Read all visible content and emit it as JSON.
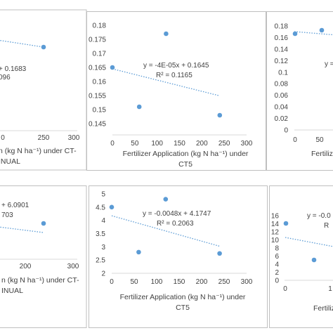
{
  "chart_data": [
    {
      "id": "top-left",
      "type": "scatter",
      "xticks": [
        "0",
        "250",
        "300"
      ],
      "xlabel_line1": "n (kg N ha⁻¹) under CT-",
      "xlabel_line2": "INUAL",
      "trendline_eq": "+ 0.1683",
      "r2": "096",
      "x": [
        240
      ],
      "y": [
        0.172
      ],
      "trend": {
        "slope": 0.0,
        "intercept": 0.1683
      }
    },
    {
      "id": "top-center",
      "type": "scatter",
      "xlim": [
        0,
        300
      ],
      "ylim": [
        0.145,
        0.18
      ],
      "xticks": [
        "0",
        "50",
        "100",
        "150",
        "200",
        "250",
        "300"
      ],
      "yticks": [
        "0.145",
        "0.15",
        "0.155",
        "0.16",
        "0.165",
        "0.17",
        "0.175",
        "0.18"
      ],
      "xlabel_line1": "Fertilizer Application (kg N ha⁻¹) under",
      "xlabel_line2": "CT5",
      "trendline_eq": "y = -4E-05x + 0.1645",
      "r2": "R² = 0.1165",
      "x": [
        0,
        60,
        120,
        240
      ],
      "y": [
        0.165,
        0.151,
        0.177,
        0.148
      ],
      "trend": {
        "slope": -4e-05,
        "intercept": 0.1645
      }
    },
    {
      "id": "top-right",
      "type": "scatter",
      "yticks": [
        "0",
        "0.02",
        "0.04",
        "0.06",
        "0.08",
        "0.1",
        "0.12",
        "0.14",
        "0.16",
        "0.18"
      ],
      "xticks": [
        "0",
        "50"
      ],
      "xlabel_line1": "Fertilize",
      "trendline_eq": "y =",
      "x": [
        0,
        60
      ],
      "y": [
        0.164,
        0.17
      ]
    },
    {
      "id": "bottom-left",
      "type": "scatter",
      "xticks": [
        "200",
        "300"
      ],
      "xlabel_line1": "n (kg N ha⁻¹) under CT-",
      "xlabel_line2": "INUAL",
      "trendline_eq": "+ 6.0901",
      "r2": "703",
      "x": [
        240
      ],
      "y": [
        3.9
      ]
    },
    {
      "id": "bottom-center",
      "type": "scatter",
      "xlim": [
        0,
        300
      ],
      "ylim": [
        2,
        5
      ],
      "xticks": [
        "0",
        "50",
        "100",
        "150",
        "200",
        "250",
        "300"
      ],
      "yticks": [
        "2",
        "2.5",
        "3",
        "3.5",
        "4",
        "4.5",
        "5"
      ],
      "xlabel_line1": "Fertilizer Application (kg N ha⁻¹) under",
      "xlabel_line2": "CT5",
      "trendline_eq": "y = -0.0048x + 4.1747",
      "r2": "R² = 0.2063",
      "x": [
        0,
        60,
        120,
        240
      ],
      "y": [
        4.5,
        2.8,
        4.8,
        2.75
      ],
      "trend": {
        "slope": -0.0048,
        "intercept": 4.1747
      }
    },
    {
      "id": "bottom-right",
      "type": "scatter",
      "yticks": [
        "0",
        "2",
        "4",
        "6",
        "8",
        "10",
        "12",
        "14",
        "16"
      ],
      "xticks": [
        "0",
        "1"
      ],
      "xlabel_line1": "Fertiliz",
      "trendline_eq": "y = -0.0",
      "r2": "R",
      "x": [
        0,
        60
      ],
      "y": [
        14.5,
        6.1
      ]
    }
  ],
  "colors": {
    "marker": "#5b9bd5",
    "trend": "#5b9bd5",
    "text": "#404040",
    "axis": "#d9d9d9",
    "border": "#bfbfbf"
  }
}
